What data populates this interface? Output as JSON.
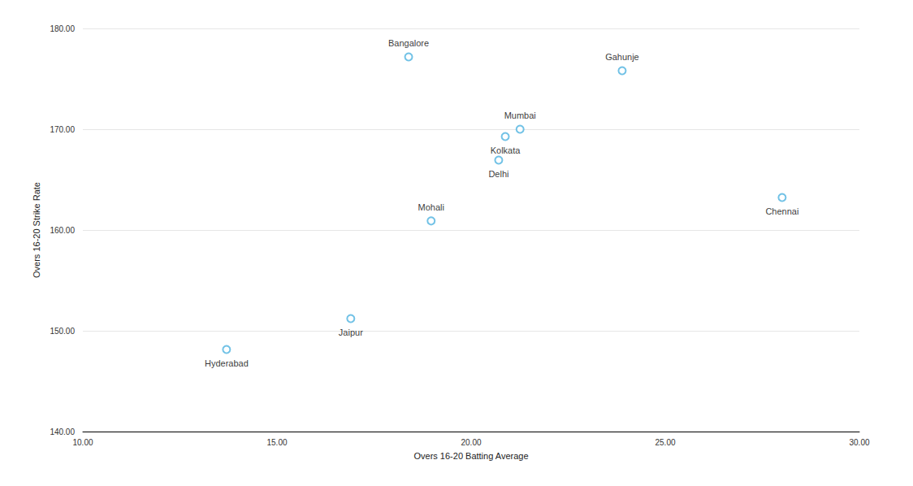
{
  "chart_data": {
    "type": "scatter",
    "x_label": "Overs 16-20 Batting Average",
    "y_label": "Overs 16-20 Strike Rate",
    "labels": [
      "Bangalore",
      "Gahunje",
      "Mumbai",
      "Kolkata",
      "Delhi",
      "Mohali",
      "Chennai",
      "Jaipur",
      "Hyderabad"
    ],
    "x": [
      18.39,
      23.89,
      21.26,
      20.88,
      20.71,
      18.97,
      28.01,
      16.9,
      13.7
    ],
    "values": [
      177.18,
      175.81,
      170.0,
      169.27,
      166.94,
      160.9,
      163.23,
      151.21,
      148.15
    ],
    "color": "#4fb3e0",
    "marker": "circle",
    "xlim": [
      10,
      30
    ],
    "xticks": [
      {
        "value": 10,
        "label": "10.00"
      },
      {
        "value": 15,
        "label": "15.00"
      },
      {
        "value": 20,
        "label": "20.00"
      },
      {
        "value": 25,
        "label": "25.00"
      },
      {
        "value": 30,
        "label": "30.00"
      }
    ],
    "ylim": [
      140,
      180
    ],
    "yticks": [
      {
        "value": 140,
        "label": "140.00"
      },
      {
        "value": 150,
        "label": "150.00"
      },
      {
        "value": 160,
        "label": "160.00"
      },
      {
        "value": 170,
        "label": "170.00"
      },
      {
        "value": 180,
        "label": "180.00"
      }
    ],
    "grid": true
  }
}
